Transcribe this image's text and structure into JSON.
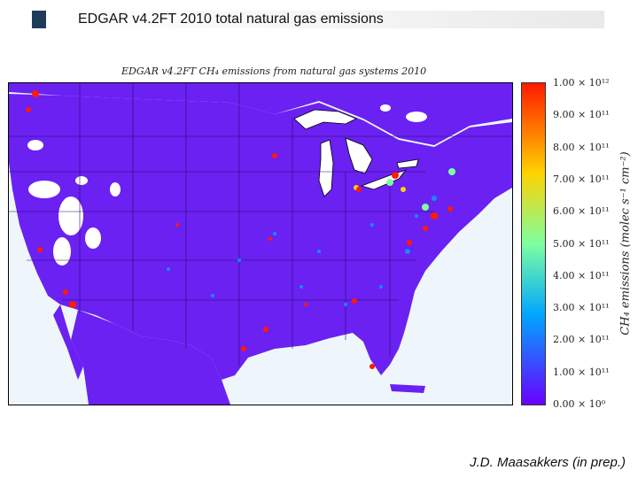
{
  "slide": {
    "title": "EDGAR v4.2FT 2010 total natural gas emissions",
    "credit": "J.D. Maasakkers (in prep.)"
  },
  "figure": {
    "map_title": "EDGAR v4.2FT CH₄ emissions from natural gas systems 2010",
    "colorbar_label": "CH₄ emissions (molec s⁻¹ cm⁻²)",
    "colorbar_ticks": [
      "1.00 × 10¹²",
      "9.00 × 10¹¹",
      "8.00 × 10¹¹",
      "7.00 × 10¹¹",
      "6.00 × 10¹¹",
      "5.00 × 10¹¹",
      "4.00 × 10¹¹",
      "3.00 × 10¹¹",
      "2.00 × 10¹¹",
      "1.00 × 10¹¹",
      "0.00 × 10⁰"
    ],
    "colors": {
      "land_background": "#6a21f2",
      "low": "#6a00ff",
      "mid_blue": "#00a6ff",
      "mid_green": "#7dffa0",
      "mid_yellow": "#ffd200",
      "high": "#ff1a00",
      "water": "#eef6fb"
    }
  }
}
